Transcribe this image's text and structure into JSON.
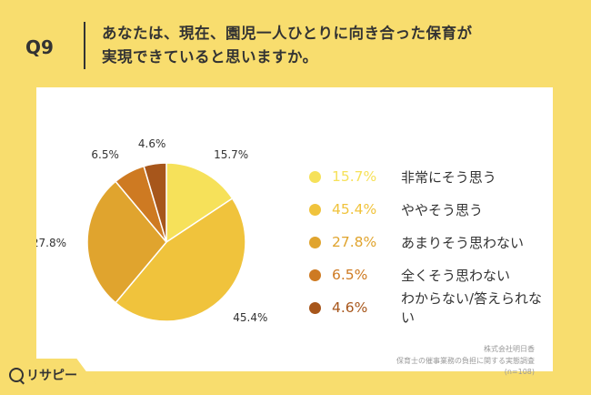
{
  "question": {
    "number": "Q9",
    "title_line1": "あなたは、現在、園児一人ひとりに向き合った保育が",
    "title_line2": "実現できていると思いますか。"
  },
  "chart_data": {
    "type": "pie",
    "title": "",
    "slices": [
      {
        "label": "非常にそう思う",
        "value": 15.7,
        "display": "15.7%",
        "color": "#F6E15A"
      },
      {
        "label": "ややそう思う",
        "value": 45.4,
        "display": "45.4%",
        "color": "#F0C33C"
      },
      {
        "label": "あまりそう思わない",
        "value": 27.8,
        "display": "27.8%",
        "color": "#E0A42E"
      },
      {
        "label": "全くそう思わない",
        "value": 6.5,
        "display": "6.5%",
        "color": "#CE7A22"
      },
      {
        "label": "わからない/答えられない",
        "value": 4.6,
        "display": "4.6%",
        "color": "#A7561B"
      }
    ],
    "start_angle": "12 o'clock",
    "direction": "clockwise",
    "legend_position": "right"
  },
  "source": {
    "company": "株式会社明日香",
    "survey": "保育士の催事業務の負担に関する実態調査",
    "n": "(n=108)"
  },
  "logo": {
    "text": "リサピー",
    "icon": "magnifier-icon"
  }
}
